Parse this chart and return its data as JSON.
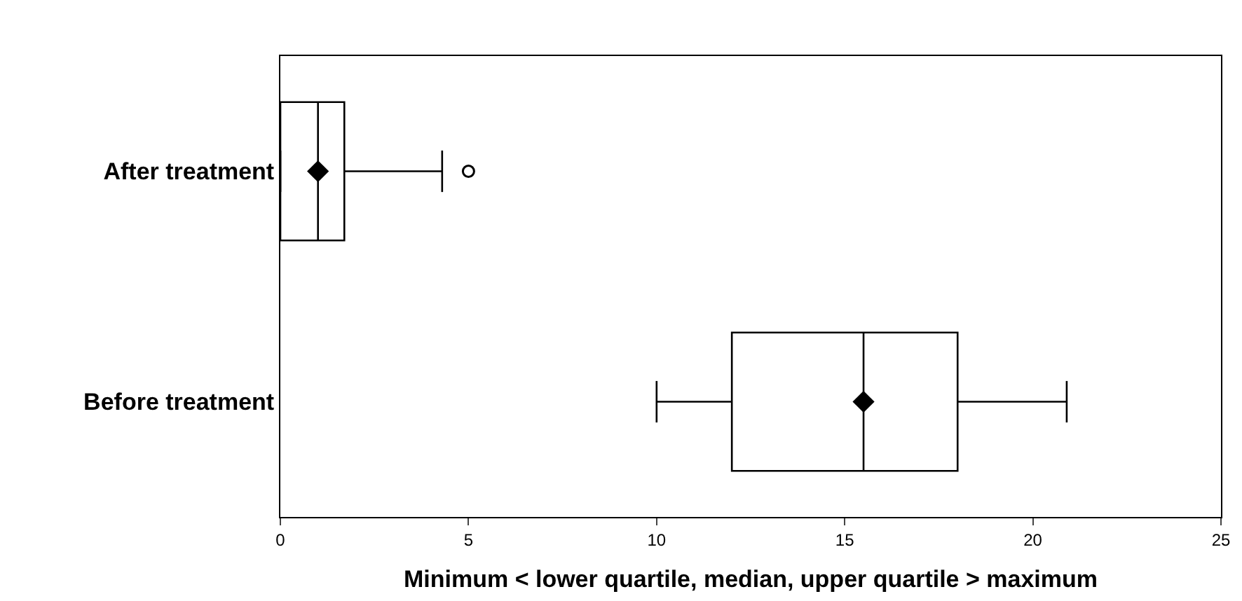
{
  "chart_data": {
    "type": "box",
    "orientation": "horizontal",
    "xlabel": "Minimum < lower quartile, median, upper quartile > maximum",
    "categories": [
      "After treatment",
      "Before treatment"
    ],
    "boxes": [
      {
        "low": 0,
        "q1": 0,
        "median": 1.0,
        "q3": 1.7,
        "high": 4.3,
        "mean": 1.0,
        "outliers": [
          5.0
        ]
      },
      {
        "low": 10.0,
        "q1": 12.0,
        "median": 15.5,
        "q3": 18.0,
        "high": 20.9,
        "mean": 15.5
      }
    ],
    "color": "#000000",
    "xlim": [
      0,
      25
    ],
    "xticks": [
      0,
      5,
      10,
      15,
      20,
      25
    ]
  }
}
